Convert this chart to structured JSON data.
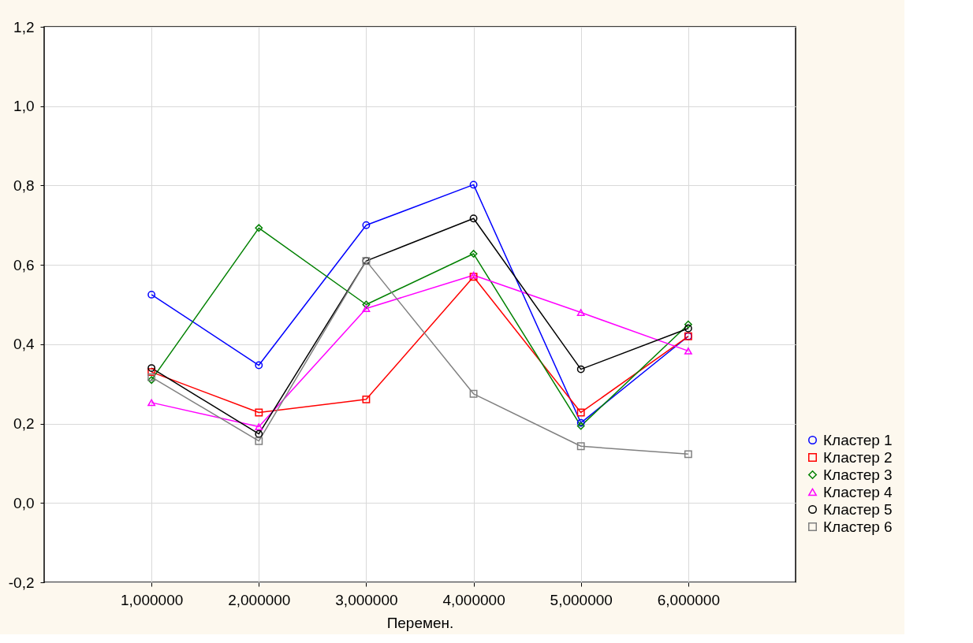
{
  "chart_data": {
    "type": "line",
    "xlabel": "Перемен.",
    "categories": [
      "1,000000",
      "2,000000",
      "3,000000",
      "4,000000",
      "5,000000",
      "6,000000"
    ],
    "ylim": [
      -0.2,
      1.2
    ],
    "yticks": [
      {
        "value": -0.2,
        "label": "-0,2"
      },
      {
        "value": 0,
        "label": "0,0"
      },
      {
        "value": 0.2,
        "label": "0,2"
      },
      {
        "value": 0.4,
        "label": "0,4"
      },
      {
        "value": 0.6,
        "label": "0,6"
      },
      {
        "value": 0.8,
        "label": "0,8"
      },
      {
        "value": 1.0,
        "label": "1,0"
      },
      {
        "value": 1.2,
        "label": "1,2"
      }
    ],
    "grid": true,
    "legend": "bottom right",
    "line_style": "solid",
    "series": [
      {
        "name": "Кластер  1",
        "color": "#0000ff",
        "marker": "circle",
        "values": [
          0.525,
          0.347,
          0.7,
          0.802,
          0.202,
          0.42
        ]
      },
      {
        "name": "Кластер  2",
        "color": "#ff0000",
        "marker": "square",
        "values": [
          0.33,
          0.228,
          0.261,
          0.57,
          0.228,
          0.42
        ]
      },
      {
        "name": "Кластер  3",
        "color": "#008000",
        "marker": "diamond",
        "values": [
          0.31,
          0.693,
          0.5,
          0.628,
          0.194,
          0.45
        ]
      },
      {
        "name": "Кластер  4",
        "color": "#ff00ff",
        "marker": "triangle",
        "values": [
          0.253,
          0.192,
          0.49,
          0.574,
          0.48,
          0.383
        ]
      },
      {
        "name": "Кластер  5",
        "color": "#000000",
        "marker": "circle",
        "values": [
          0.34,
          0.174,
          0.61,
          0.717,
          0.337,
          0.44
        ]
      },
      {
        "name": "Кластер  6",
        "color": "#808080",
        "marker": "square",
        "values": [
          0.317,
          0.156,
          0.61,
          0.275,
          0.143,
          0.123
        ]
      }
    ]
  }
}
